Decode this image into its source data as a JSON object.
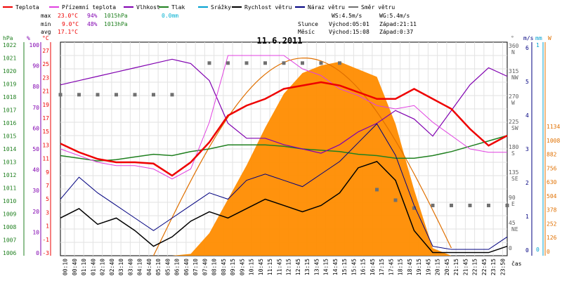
{
  "chart_data": {
    "type": "line",
    "title": "11.6.2011",
    "legend": [
      {
        "label": "Teplota",
        "color": "#ee0000"
      },
      {
        "label": "Přízemní teplota",
        "color": "#e040e0"
      },
      {
        "label": "Vlhkost",
        "color": "#8000b0"
      },
      {
        "label": "Tlak",
        "color": "#208020"
      },
      {
        "label": "Srážky",
        "color": "#00a0d0"
      },
      {
        "label": "Rychlost větru",
        "color": "#000000"
      },
      {
        "label": "Náraz větru",
        "color": "#000080"
      },
      {
        "label": "Směr větru",
        "color": "#707070"
      }
    ],
    "stats": {
      "max": {
        "label": "max",
        "temp": "23.0°C",
        "hum": "94%",
        "press": "1015hPa",
        "rain": "0.0mm"
      },
      "min": {
        "label": "min",
        "temp": "9.0°C",
        "hum": "48%",
        "press": "1013hPa"
      },
      "avg": {
        "label": "avg",
        "temp": "17.1°C"
      }
    },
    "wind_info": {
      "ws": "WS:4.5m/s",
      "wg": "WG:5.4m/s"
    },
    "sun_info": {
      "label": "Slunce",
      "rise": "Východ:05:01",
      "set": "Západ:21:11"
    },
    "moon_info": {
      "label": "Měsíc",
      "rise": "Východ:15:08",
      "set": "Západ:0:37"
    },
    "left_axes": {
      "hpa_unit": "hPa",
      "pct_unit": "%",
      "c_unit": "°C",
      "hpa_ticks": [
        "1022",
        "1021",
        "1020",
        "1019",
        "1018",
        "1017",
        "1016",
        "1015",
        "1014",
        "1013",
        "1012",
        "1011",
        "1010",
        "1009",
        "1008",
        "1007",
        "1006"
      ],
      "pct_ticks": [
        "100",
        "90",
        "80",
        "70",
        "60",
        "50",
        "40",
        "30",
        "20",
        "10",
        "0"
      ],
      "c_ticks": [
        "27",
        "25",
        "23",
        "21",
        "19",
        "17",
        "15",
        "13",
        "11",
        "9",
        "7",
        "5",
        "3",
        "1",
        "-1",
        "-3"
      ]
    },
    "right_axes": {
      "deg_unit": "°",
      "ms_unit": "m/s",
      "mm_unit": "mm",
      "w_unit": "W",
      "dir_ticks": [
        {
          "deg": "360",
          "dir": "N"
        },
        {
          "deg": "315",
          "dir": "NW"
        },
        {
          "deg": "270",
          "dir": "W"
        },
        {
          "deg": "225",
          "dir": "SW"
        },
        {
          "deg": "180",
          "dir": "S"
        },
        {
          "deg": "135",
          "dir": "SE"
        },
        {
          "deg": "90",
          "dir": "E"
        },
        {
          "deg": "45",
          "dir": "NE"
        },
        {
          "deg": "0",
          "dir": ""
        }
      ],
      "ms_ticks": [
        "6",
        "5",
        "4",
        "3",
        "2",
        "1",
        "0"
      ],
      "mm_top": "1",
      "mm_bottom": "0",
      "w_ticks": [
        "1134",
        "1008",
        "882",
        "756",
        "630",
        "504",
        "378",
        "252",
        "126",
        "0"
      ]
    },
    "x_label": "čas",
    "x_ticks": [
      "00:10",
      "00:40",
      "01:10",
      "01:40",
      "02:10",
      "02:40",
      "03:10",
      "03:40",
      "04:10",
      "04:40",
      "05:10",
      "05:40",
      "06:10",
      "06:40",
      "07:10",
      "07:40",
      "08:10",
      "08:45",
      "09:15",
      "09:45",
      "10:15",
      "10:45",
      "11:15",
      "11:45",
      "12:15",
      "12:45",
      "13:15",
      "13:45",
      "14:15",
      "14:45",
      "15:15",
      "15:45",
      "16:15",
      "16:45",
      "17:15",
      "17:45",
      "18:15",
      "18:45",
      "19:15",
      "19:45",
      "20:15",
      "20:45",
      "21:15",
      "21:45",
      "22:15",
      "22:45",
      "23:15",
      "23:50"
    ],
    "hours": [
      0,
      1,
      2,
      3,
      4,
      5,
      6,
      7,
      8,
      9,
      10,
      11,
      12,
      13,
      14,
      15,
      16,
      17,
      18,
      19,
      20,
      21,
      22,
      23,
      24
    ],
    "temperature_c": [
      13.8,
      12.5,
      11.5,
      11.0,
      11.0,
      10.8,
      9.0,
      11.0,
      14.0,
      18.0,
      19.5,
      20.5,
      22.0,
      22.5,
      23.0,
      22.5,
      21.5,
      20.5,
      20.5,
      22.0,
      20.5,
      19.0,
      16.0,
      13.5,
      15.0
    ],
    "ground_temp_c": [
      13.0,
      12.0,
      11.0,
      10.5,
      10.5,
      10.0,
      8.5,
      10.0,
      17.0,
      27.0,
      27.0,
      27.0,
      27.0,
      25.0,
      24.0,
      22.0,
      21.0,
      19.5,
      19.0,
      19.5,
      17.0,
      15.0,
      13.0,
      12.5,
      12.5
    ],
    "humidity_pct": [
      80,
      82,
      84,
      86,
      88,
      90,
      92,
      90,
      82,
      62,
      55,
      55,
      52,
      50,
      48,
      52,
      58,
      62,
      68,
      64,
      56,
      68,
      80,
      88,
      84
    ],
    "pressure_hpa": [
      1013.5,
      1013.3,
      1013.1,
      1013.2,
      1013.4,
      1013.6,
      1013.5,
      1013.8,
      1014.0,
      1014.3,
      1014.3,
      1014.3,
      1014.2,
      1014.0,
      1013.9,
      1013.8,
      1013.6,
      1013.5,
      1013.3,
      1013.3,
      1013.5,
      1013.8,
      1014.2,
      1014.6,
      1015.0
    ],
    "wind_speed_ms": [
      1.2,
      1.5,
      1.0,
      1.2,
      0.8,
      0.3,
      0.6,
      1.1,
      1.4,
      1.2,
      1.5,
      1.8,
      1.6,
      1.4,
      1.6,
      2.0,
      2.8,
      3.0,
      2.4,
      0.8,
      0.1,
      0.1,
      0.1,
      0.1,
      0.3
    ],
    "wind_gust_ms": [
      1.8,
      2.5,
      2.0,
      1.6,
      1.2,
      0.8,
      1.2,
      1.6,
      2.0,
      1.8,
      2.4,
      2.6,
      2.4,
      2.2,
      2.6,
      3.0,
      3.6,
      4.2,
      3.2,
      1.6,
      0.3,
      0.2,
      0.2,
      0.2,
      0.6
    ],
    "solar_w": [
      0,
      0,
      0,
      0,
      0,
      0,
      0,
      10,
      120,
      300,
      480,
      680,
      860,
      970,
      1010,
      1030,
      990,
      950,
      700,
      350,
      40,
      0,
      0,
      0,
      0
    ],
    "wind_dir_deg": [
      300,
      300,
      300,
      300,
      300,
      300,
      300,
      null,
      360,
      360,
      360,
      360,
      360,
      360,
      360,
      360,
      null,
      120,
      100,
      85,
      90,
      90,
      90,
      90,
      90
    ],
    "ylim_temp": [
      -3,
      29
    ],
    "ylim_humidity": [
      0,
      100
    ],
    "ylim_pressure": [
      1006,
      1022
    ],
    "ylim_wind": [
      0,
      6.8
    ],
    "ylim_solar": [
      0,
      1134
    ]
  }
}
